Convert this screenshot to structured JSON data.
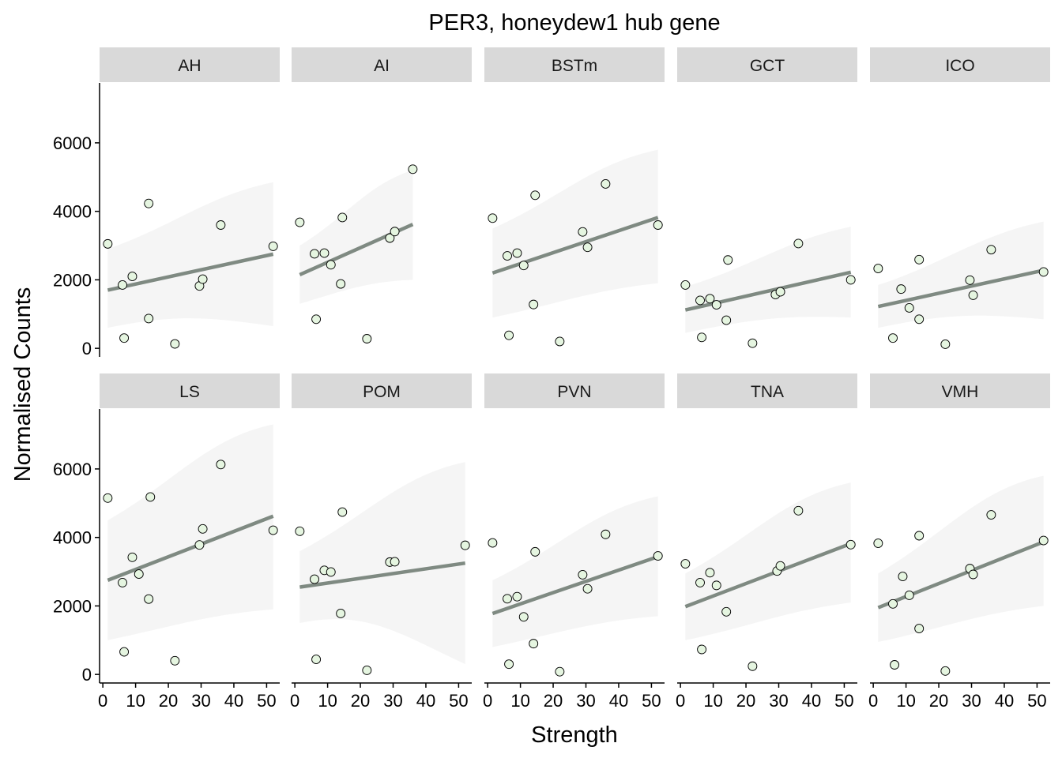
{
  "chart_data": {
    "type": "scatter",
    "title": "PER3, honeydew1 hub gene",
    "xlabel": "Strength",
    "ylabel": "Normalised Counts",
    "xlim": [
      -1,
      54
    ],
    "ylim": [
      -250,
      7750
    ],
    "x_ticks": [
      0,
      10,
      20,
      30,
      40,
      50
    ],
    "y_ticks": [
      0,
      2000,
      4000,
      6000
    ],
    "grid": false,
    "point_fill": "#e5f5e0",
    "point_stroke": "#000000",
    "line_color": "#7f8a82",
    "ribbon_color": "#f5f5f5",
    "strip_color": "#d9d9d9",
    "panels": [
      {
        "name": "AH",
        "x": [
          1.5,
          6,
          6.5,
          9,
          14,
          14,
          22,
          29.5,
          30.5,
          36,
          52
        ],
        "y": [
          3050,
          1850,
          300,
          2100,
          4230,
          870,
          130,
          1820,
          2020,
          3600,
          2980
        ],
        "fit": [
          1700,
          2750
        ],
        "band_lo": [
          600,
          650
        ],
        "band_hi": [
          2900,
          4850
        ]
      },
      {
        "name": "AI",
        "x": [
          1.5,
          6,
          6.5,
          9,
          11,
          14,
          14.5,
          22,
          29,
          30.5,
          36
        ],
        "y": [
          3680,
          2760,
          850,
          2780,
          2440,
          1880,
          3820,
          280,
          3220,
          3410,
          5230
        ],
        "fit": [
          2150,
          3620
        ],
        "band_lo": [
          1300,
          2000
        ],
        "band_hi": [
          3000,
          5200
        ]
      },
      {
        "name": "BSTm",
        "x": [
          1.5,
          6,
          6.5,
          9,
          11,
          14,
          14.5,
          22,
          29,
          30.5,
          36,
          52
        ],
        "y": [
          3800,
          2700,
          380,
          2780,
          2420,
          1280,
          4470,
          200,
          3400,
          2950,
          4800,
          3600
        ],
        "fit": [
          2200,
          3820
        ],
        "band_lo": [
          900,
          1900
        ],
        "band_hi": [
          3500,
          5800
        ]
      },
      {
        "name": "GCT",
        "x": [
          1.5,
          6,
          6.5,
          9,
          11,
          14,
          14.5,
          22,
          29,
          30.5,
          36,
          52
        ],
        "y": [
          1850,
          1400,
          320,
          1450,
          1270,
          820,
          2580,
          150,
          1570,
          1650,
          3060,
          2000
        ],
        "fit": [
          1120,
          2220
        ],
        "band_lo": [
          450,
          900
        ],
        "band_hi": [
          1800,
          3550
        ]
      },
      {
        "name": "ICO",
        "x": [
          1.5,
          6,
          8.5,
          11,
          14,
          14,
          22,
          29.5,
          30.5,
          36,
          52
        ],
        "y": [
          2330,
          300,
          1730,
          1180,
          850,
          2590,
          120,
          1990,
          1550,
          2880,
          2230
        ],
        "fit": [
          1220,
          2280
        ],
        "band_lo": [
          600,
          850
        ],
        "band_hi": [
          1850,
          3700
        ]
      },
      {
        "name": "LS",
        "x": [
          1.5,
          6,
          6.5,
          9,
          11,
          14,
          14.5,
          22,
          29.5,
          30.5,
          36,
          52
        ],
        "y": [
          5150,
          2680,
          660,
          3420,
          2930,
          2200,
          5180,
          400,
          3780,
          4250,
          6130,
          4210
        ],
        "fit": [
          2750,
          4620
        ],
        "band_lo": [
          1000,
          1900
        ],
        "band_hi": [
          4500,
          7300
        ]
      },
      {
        "name": "POM",
        "x": [
          1.5,
          6,
          6.5,
          9,
          11,
          14,
          14.5,
          22,
          29,
          30.5,
          52
        ],
        "y": [
          4180,
          2780,
          440,
          3040,
          2990,
          1780,
          4740,
          120,
          3280,
          3290,
          3770
        ],
        "fit": [
          2550,
          3250
        ],
        "band_lo": [
          1500,
          300
        ],
        "band_hi": [
          3600,
          6200
        ]
      },
      {
        "name": "PVN",
        "x": [
          1.5,
          6,
          6.5,
          9,
          11,
          14,
          14.5,
          22,
          29,
          30.5,
          36,
          52
        ],
        "y": [
          3840,
          2210,
          300,
          2270,
          1680,
          900,
          3580,
          80,
          2910,
          2500,
          4090,
          3460
        ],
        "fit": [
          1780,
          3440
        ],
        "band_lo": [
          800,
          1700
        ],
        "band_hi": [
          2750,
          5200
        ]
      },
      {
        "name": "TNA",
        "x": [
          1.5,
          6,
          6.5,
          9,
          11,
          14,
          22,
          29.5,
          30.5,
          36,
          52
        ],
        "y": [
          3230,
          2680,
          730,
          2970,
          2600,
          1830,
          240,
          3020,
          3170,
          4780,
          3790
        ],
        "fit": [
          1980,
          3820
        ],
        "band_lo": [
          1000,
          2100
        ],
        "band_hi": [
          2950,
          5600
        ]
      },
      {
        "name": "VMH",
        "x": [
          1.5,
          6,
          6.5,
          9,
          11,
          14,
          14,
          22,
          29.5,
          30.5,
          36,
          52
        ],
        "y": [
          3830,
          2060,
          280,
          2860,
          2310,
          1340,
          4050,
          100,
          3090,
          2920,
          4660,
          3910
        ],
        "fit": [
          1950,
          3870
        ],
        "band_lo": [
          950,
          2000
        ],
        "band_hi": [
          2950,
          5800
        ]
      }
    ]
  }
}
